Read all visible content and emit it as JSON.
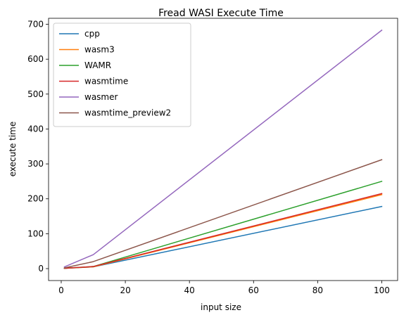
{
  "chart_data": {
    "type": "line",
    "title": "Fread WASI Execute Time",
    "xlabel": "input size",
    "ylabel": "execute time",
    "xlim": [
      -3.95,
      104.95
    ],
    "ylim": [
      -34.2,
      717.2
    ],
    "xticks": [
      0,
      20,
      40,
      60,
      80,
      100
    ],
    "yticks": [
      0,
      100,
      200,
      300,
      400,
      500,
      600,
      700
    ],
    "grid": false,
    "legend_position": "top-left",
    "x": [
      1,
      10,
      100
    ],
    "series": [
      {
        "name": "cpp",
        "color": "#1f77b4",
        "values": [
          1,
          5,
          178
        ]
      },
      {
        "name": "wasm3",
        "color": "#ff7f0e",
        "values": [
          1,
          5,
          212
        ]
      },
      {
        "name": "WAMR",
        "color": "#2ca02c",
        "values": [
          1,
          6,
          250
        ]
      },
      {
        "name": "wasmtime",
        "color": "#d62728",
        "values": [
          1,
          6,
          215
        ]
      },
      {
        "name": "wasmer",
        "color": "#9467bd",
        "values": [
          5,
          40,
          683
        ]
      },
      {
        "name": "wasmtime_preview2",
        "color": "#8c564b",
        "values": [
          2,
          20,
          312
        ]
      }
    ]
  }
}
